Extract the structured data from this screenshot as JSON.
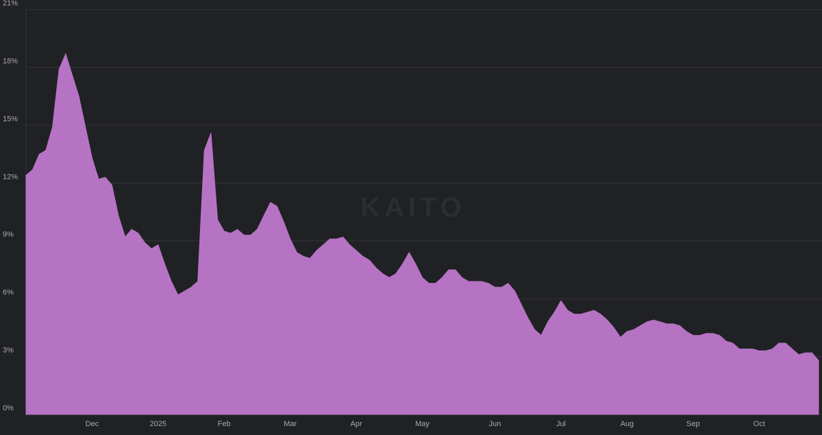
{
  "chart_data": {
    "type": "area",
    "watermark": "KAITO",
    "categories": [
      null,
      null,
      null,
      null,
      null,
      null,
      null,
      null,
      null,
      null,
      "Dec",
      null,
      null,
      null,
      null,
      null,
      null,
      null,
      null,
      null,
      "2025",
      null,
      null,
      null,
      null,
      null,
      null,
      null,
      null,
      null,
      "Feb",
      null,
      null,
      null,
      null,
      null,
      null,
      null,
      null,
      null,
      "Mar",
      null,
      null,
      null,
      null,
      null,
      null,
      null,
      null,
      null,
      "Apr",
      null,
      null,
      null,
      null,
      null,
      null,
      null,
      null,
      null,
      "May",
      null,
      null,
      null,
      null,
      null,
      null,
      null,
      null,
      null,
      null,
      "Jun",
      null,
      null,
      null,
      null,
      null,
      null,
      null,
      null,
      null,
      "Jul",
      null,
      null,
      null,
      null,
      null,
      null,
      null,
      null,
      null,
      "Aug",
      null,
      null,
      null,
      null,
      null,
      null,
      null,
      null,
      null,
      "Sep",
      null,
      null,
      null,
      null,
      null,
      null,
      null,
      null,
      null,
      "Oct",
      null,
      null,
      null,
      null,
      null,
      null,
      null,
      null,
      null
    ],
    "values": [
      12.4,
      12.7,
      13.5,
      13.7,
      14.9,
      17.9,
      18.7,
      17.6,
      16.5,
      14.9,
      13.3,
      12.2,
      12.3,
      11.9,
      10.3,
      9.2,
      9.6,
      9.4,
      8.9,
      8.6,
      8.8,
      7.8,
      6.9,
      6.2,
      6.4,
      6.6,
      6.9,
      13.7,
      14.6,
      10.1,
      9.5,
      9.4,
      9.6,
      9.3,
      9.3,
      9.6,
      10.3,
      11.0,
      10.8,
      10.0,
      9.1,
      8.4,
      8.2,
      8.1,
      8.5,
      8.8,
      9.1,
      9.1,
      9.2,
      8.8,
      8.5,
      8.2,
      8.0,
      7.6,
      7.3,
      7.1,
      7.3,
      7.8,
      8.4,
      7.8,
      7.1,
      6.8,
      6.8,
      7.1,
      7.5,
      7.5,
      7.1,
      6.9,
      6.9,
      6.9,
      6.8,
      6.6,
      6.6,
      6.8,
      6.4,
      5.7,
      5.0,
      4.4,
      4.1,
      4.8,
      5.3,
      5.9,
      5.4,
      5.2,
      5.2,
      5.3,
      5.4,
      5.2,
      4.9,
      4.5,
      4.0,
      4.3,
      4.4,
      4.6,
      4.8,
      4.9,
      4.8,
      4.7,
      4.7,
      4.6,
      4.3,
      4.1,
      4.1,
      4.2,
      4.2,
      4.1,
      3.8,
      3.7,
      3.4,
      3.4,
      3.4,
      3.3,
      3.3,
      3.4,
      3.7,
      3.7,
      3.4,
      3.1,
      3.2,
      3.2,
      2.8
    ],
    "color": "#b673c4",
    "ylim": [
      0,
      21
    ],
    "yticks": [
      {
        "value": 0,
        "label": "0%"
      },
      {
        "value": 3,
        "label": "3%"
      },
      {
        "value": 6,
        "label": "6%"
      },
      {
        "value": 9,
        "label": "9%"
      },
      {
        "value": 12,
        "label": "12%"
      },
      {
        "value": 15,
        "label": "15%"
      },
      {
        "value": 18,
        "label": "18%"
      },
      {
        "value": 21,
        "label": "21%"
      }
    ],
    "grid": true
  }
}
